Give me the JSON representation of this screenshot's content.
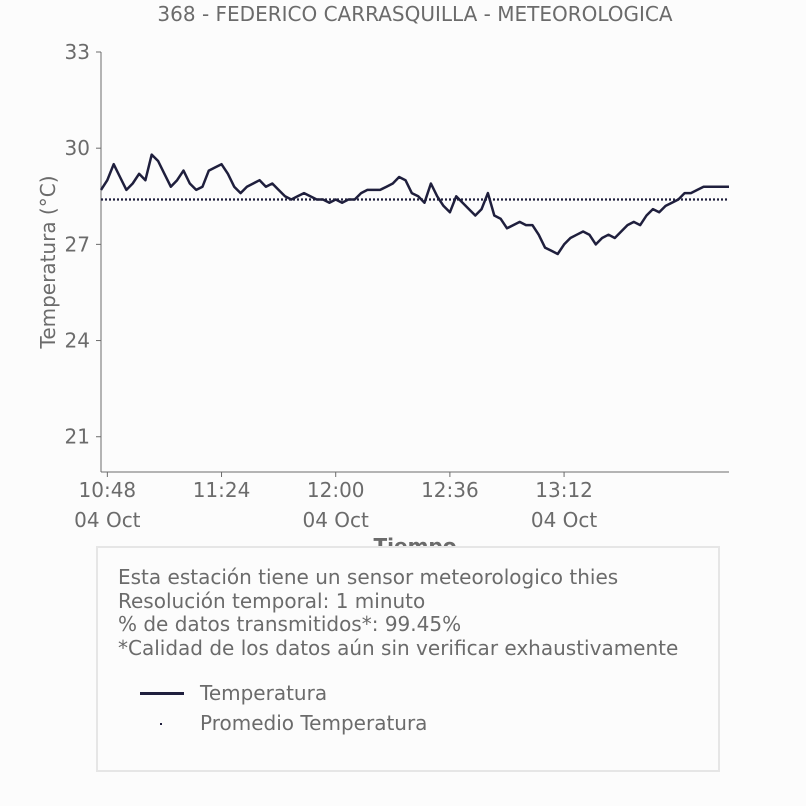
{
  "chart_data": {
    "type": "line",
    "title": "368 - FEDERICO CARRASQUILLA - METEOROLOGICA",
    "xlabel": "Tiempo",
    "ylabel": "Temperatura (°C)",
    "ylim": [
      19.9,
      33
    ],
    "yticks": [
      21,
      24,
      27,
      30,
      33
    ],
    "xlim": [
      "10:46",
      "14:04"
    ],
    "xticks": [
      {
        "time": "10:48",
        "date": "04 Oct"
      },
      {
        "time": "11:24",
        "date": ""
      },
      {
        "time": "12:00",
        "date": "04 Oct"
      },
      {
        "time": "12:36",
        "date": ""
      },
      {
        "time": "13:12",
        "date": "04 Oct"
      }
    ],
    "grid": false,
    "series": [
      {
        "name": "Temperatura",
        "color": "#1f1f3d",
        "x": [
          "10:46",
          "10:48",
          "10:50",
          "10:52",
          "10:54",
          "10:56",
          "10:58",
          "11:00",
          "11:02",
          "11:04",
          "11:06",
          "11:08",
          "11:10",
          "11:12",
          "11:14",
          "11:16",
          "11:18",
          "11:20",
          "11:22",
          "11:24",
          "11:26",
          "11:28",
          "11:30",
          "11:32",
          "11:34",
          "11:36",
          "11:38",
          "11:40",
          "11:42",
          "11:44",
          "11:46",
          "11:48",
          "11:50",
          "11:52",
          "11:54",
          "11:56",
          "11:58",
          "12:00",
          "12:02",
          "12:04",
          "12:06",
          "12:08",
          "12:10",
          "12:12",
          "12:14",
          "12:16",
          "12:18",
          "12:20",
          "12:22",
          "12:24",
          "12:26",
          "12:28",
          "12:30",
          "12:32",
          "12:34",
          "12:36",
          "12:38",
          "12:40",
          "12:42",
          "12:44",
          "12:46",
          "12:48",
          "12:50",
          "12:52",
          "12:54",
          "12:56",
          "12:58",
          "13:00",
          "13:02",
          "13:04",
          "13:06",
          "13:08",
          "13:10",
          "13:12",
          "13:14",
          "13:16",
          "13:18",
          "13:20",
          "13:22",
          "13:24",
          "13:26",
          "13:28",
          "13:30",
          "13:32",
          "13:34",
          "13:36",
          "13:38",
          "13:40",
          "13:42",
          "13:44",
          "13:46",
          "13:48",
          "13:50",
          "13:52",
          "13:54",
          "13:56",
          "13:58",
          "14:00",
          "14:02",
          "14:04"
        ],
        "y": [
          28.7,
          29.0,
          29.5,
          29.1,
          28.7,
          28.9,
          29.2,
          29.0,
          29.8,
          29.6,
          29.2,
          28.8,
          29.0,
          29.3,
          28.9,
          28.7,
          28.8,
          29.3,
          29.4,
          29.5,
          29.2,
          28.8,
          28.6,
          28.8,
          28.9,
          29.0,
          28.8,
          28.9,
          28.7,
          28.5,
          28.4,
          28.5,
          28.6,
          28.5,
          28.4,
          28.4,
          28.3,
          28.4,
          28.3,
          28.4,
          28.4,
          28.6,
          28.7,
          28.7,
          28.7,
          28.8,
          28.9,
          29.1,
          29.0,
          28.6,
          28.5,
          28.3,
          28.9,
          28.5,
          28.2,
          28.0,
          28.5,
          28.3,
          28.1,
          27.9,
          28.1,
          28.6,
          27.9,
          27.8,
          27.5,
          27.6,
          27.7,
          27.6,
          27.6,
          27.3,
          26.9,
          26.8,
          26.7,
          27.0,
          27.2,
          27.3,
          27.4,
          27.3,
          27.0,
          27.2,
          27.3,
          27.2,
          27.4,
          27.6,
          27.7,
          27.6,
          27.9,
          28.1,
          28.0,
          28.2,
          28.3,
          28.4,
          28.6,
          28.6,
          28.7,
          28.8,
          28.8,
          28.8,
          28.8,
          28.8
        ]
      },
      {
        "name": "Promedio Temperatura",
        "color": "#1f1f3d",
        "style": "dotted",
        "constant": 28.4
      }
    ],
    "legend": {
      "placement": "bottom-box",
      "items": [
        {
          "label": "Temperatura",
          "marker": "line"
        },
        {
          "label": "Promedio Temperatura",
          "marker": "dot"
        }
      ]
    }
  },
  "info": {
    "lines": [
      "Esta estación tiene un sensor meteorologico thies",
      "Resolución temporal: 1 minuto",
      "% de datos transmitidos*: 99.45%",
      "*Calidad de los datos aún sin verificar exhaustivamente"
    ]
  }
}
